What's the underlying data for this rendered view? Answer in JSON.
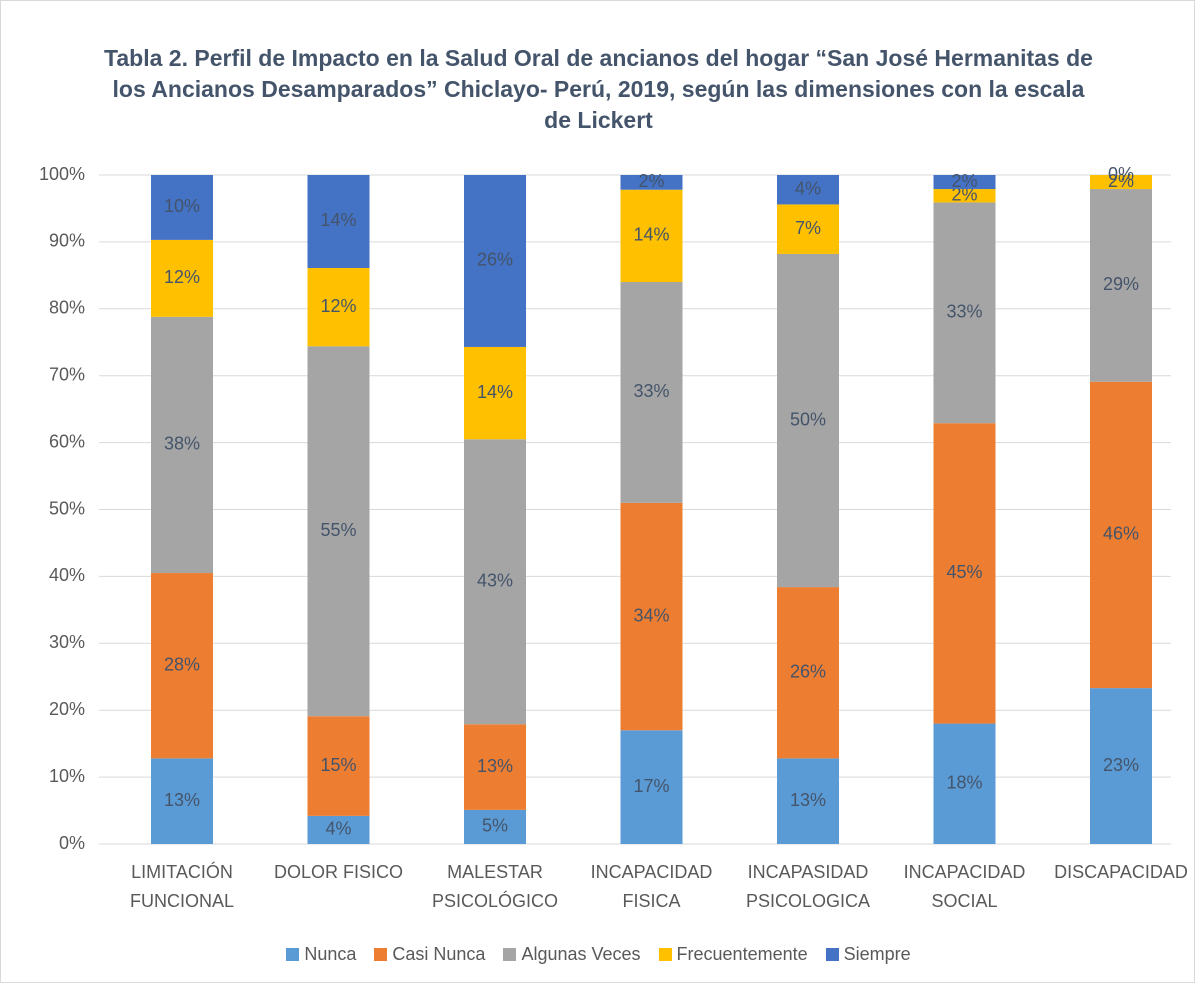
{
  "chart_data": {
    "type": "stacked_bar",
    "title": "Tabla 2. Perfil de Impacto en la Salud Oral de ancianos del hogar “San José Hermanitas de los Ancianos Desamparados” Chiclayo- Perú, 2019, según las dimensiones con la escala de Lickert",
    "categories": [
      [
        "LIMITACIÓN",
        "FUNCIONAL"
      ],
      [
        "DOLOR FISICO"
      ],
      [
        "MALESTAR",
        "PSICOLÓGICO"
      ],
      [
        "INCAPACIDAD",
        "FISICA"
      ],
      [
        "INCAPASIDAD",
        "PSICOLOGICA"
      ],
      [
        "INCAPACIDAD",
        "SOCIAL"
      ],
      [
        "DISCAPACIDAD"
      ]
    ],
    "series": [
      {
        "name": "Nunca",
        "color": "#5b9bd5",
        "values": [
          12.8,
          4.2,
          5.1,
          17.0,
          12.8,
          18.0,
          23.3
        ],
        "value_labels": [
          "13%",
          "4%",
          "5%",
          "17%",
          "13%",
          "18%",
          "23%"
        ]
      },
      {
        "name": "Casi Nunca",
        "color": "#ed7d31",
        "values": [
          27.7,
          14.9,
          12.8,
          34.0,
          25.6,
          44.9,
          45.8
        ],
        "value_labels": [
          "28%",
          "15%",
          "13%",
          "34%",
          "26%",
          "45%",
          "46%"
        ]
      },
      {
        "name": "Algunas Veces",
        "color": "#a5a5a5",
        "values": [
          38.3,
          55.3,
          42.6,
          33.0,
          49.8,
          33.0,
          28.8
        ],
        "value_labels": [
          "38%",
          "55%",
          "43%",
          "33%",
          "50%",
          "33%",
          "29%"
        ]
      },
      {
        "name": "Frecuentemente",
        "color": "#ffc000",
        "values": [
          11.5,
          11.7,
          13.8,
          13.8,
          7.4,
          2.0,
          2.1
        ],
        "value_labels": [
          "12%",
          "12%",
          "14%",
          "14%",
          "7%",
          "2%",
          "2%"
        ]
      },
      {
        "name": "Siempre",
        "color": "#4472c4",
        "values": [
          9.7,
          13.9,
          25.7,
          2.2,
          4.4,
          2.1,
          0
        ],
        "value_labels": [
          "10%",
          "14%",
          "26%",
          "2%",
          "4%",
          "2%",
          "0%"
        ]
      }
    ],
    "ylim": [
      0,
      100
    ],
    "yticks": [
      {
        "value": 0,
        "label": "0%"
      },
      {
        "value": 10,
        "label": "10%"
      },
      {
        "value": 20,
        "label": "20%"
      },
      {
        "value": 30,
        "label": "30%"
      },
      {
        "value": 40,
        "label": "40%"
      },
      {
        "value": 50,
        "label": "50%"
      },
      {
        "value": 60,
        "label": "60%"
      },
      {
        "value": 70,
        "label": "70%"
      },
      {
        "value": 80,
        "label": "80%"
      },
      {
        "value": 90,
        "label": "90%"
      },
      {
        "value": 100,
        "label": "100%"
      }
    ],
    "grid": true,
    "legend": "bottom"
  }
}
